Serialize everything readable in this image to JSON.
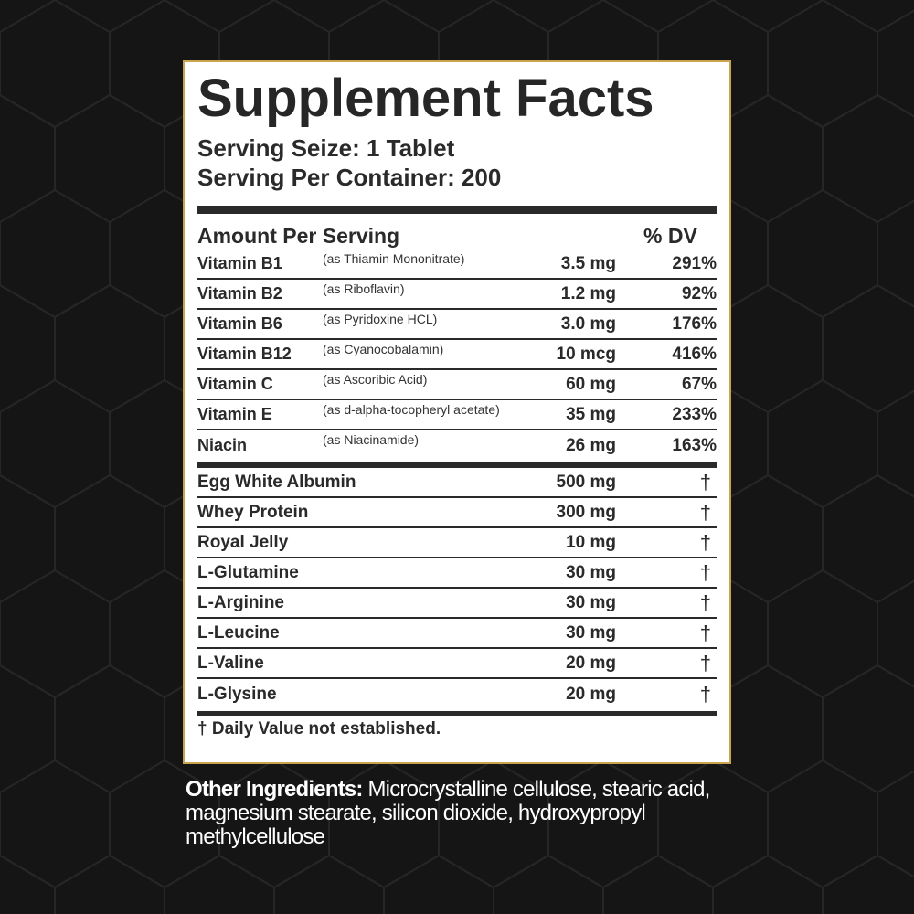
{
  "panel": {
    "title": "Supplement Facts",
    "serving_size": "Serving Seize: 1 Tablet",
    "servings_per_container": "Serving Per Container: 200",
    "header_amount": "Amount Per Serving",
    "header_dv": "% DV",
    "vitamins": [
      {
        "name": "Vitamin B1",
        "source": "(as Thiamin Mononitrate)",
        "amount": "3.5 mg",
        "dv": "291%"
      },
      {
        "name": "Vitamin B2",
        "source": "(as Riboflavin)",
        "amount": "1.2 mg",
        "dv": "92%"
      },
      {
        "name": "Vitamin B6",
        "source": "(as Pyridoxine HCL)",
        "amount": "3.0 mg",
        "dv": "176%"
      },
      {
        "name": "Vitamin B12",
        "source": "(as Cyanocobalamin)",
        "amount": "10 mcg",
        "dv": "416%"
      },
      {
        "name": "Vitamin C",
        "source": "(as Ascoribic Acid)",
        "amount": "60 mg",
        "dv": "67%"
      },
      {
        "name": "Vitamin E",
        "source": "(as d-alpha-tocopheryl acetate)",
        "amount": "35 mg",
        "dv": "233%"
      },
      {
        "name": "Niacin",
        "source": "(as Niacinamide)",
        "amount": "26 mg",
        "dv": "163%"
      }
    ],
    "others": [
      {
        "name": "Egg White Albumin",
        "amount": "500 mg",
        "dv": "†"
      },
      {
        "name": "Whey Protein",
        "amount": "300 mg",
        "dv": "†"
      },
      {
        "name": "Royal Jelly",
        "amount": "10 mg",
        "dv": "†"
      },
      {
        "name": "L-Glutamine",
        "amount": "30 mg",
        "dv": "†"
      },
      {
        "name": "L-Arginine",
        "amount": "30 mg",
        "dv": "†"
      },
      {
        "name": "L-Leucine",
        "amount": "30 mg",
        "dv": "†"
      },
      {
        "name": "L-Valine",
        "amount": "20 mg",
        "dv": "†"
      },
      {
        "name": "L-Glysine",
        "amount": "20 mg",
        "dv": "†"
      }
    ],
    "footnote": "† Daily Value not established."
  },
  "other_ingredients": {
    "label": "Other Ingredients:",
    "text": " Microcrystalline cellulose, stearic acid, magnesium stearate, silicon dioxide, hydroxypropyl methylcellulose"
  },
  "colors": {
    "background": "#151515",
    "panel_border": "#c9a34e",
    "ink": "#2a2a2a",
    "hex_line": "#242424"
  }
}
